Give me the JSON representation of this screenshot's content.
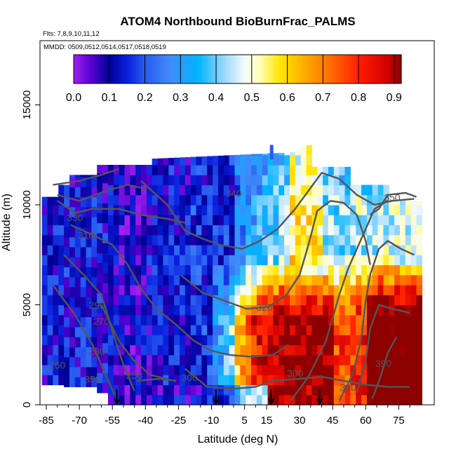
{
  "chart_data": {
    "type": "heatmap",
    "title": "ATOM4 Northbound BioBurnFrac_PALMS",
    "flights_label": "Flts: 7,8,9,10,11,12",
    "mmdd_label": "MMDD: 0509,0512,0514,0517,0518,0519",
    "xlabel": "Latitude (deg N)",
    "ylabel": "Altitude (m)",
    "xlim": [
      -87,
      84
    ],
    "ylim": [
      0,
      17500
    ],
    "x_ticks": [
      -85,
      -70,
      -55,
      -40,
      -25,
      -10,
      5,
      15,
      30,
      45,
      60,
      75
    ],
    "y_ticks": [
      0,
      5000,
      10000,
      15000
    ],
    "colorbar": {
      "ticks": [
        "0.0",
        "0.1",
        "0.2",
        "0.3",
        "0.4",
        "0.5",
        "0.6",
        "0.7",
        "0.8",
        "0.9"
      ],
      "range": [
        0,
        0.92
      ]
    },
    "contours": [
      {
        "label": "250",
        "lat": -45
      },
      {
        "label": "260",
        "lat": -80
      },
      {
        "label": "270",
        "lat": -60
      },
      {
        "label": "280",
        "lat": -62
      },
      {
        "label": "290",
        "lat": -62
      },
      {
        "label": "300",
        "lat": -20
      },
      {
        "label": "300",
        "lat": 28
      },
      {
        "label": "310",
        "lat": -67
      },
      {
        "label": "320",
        "lat": 14
      },
      {
        "label": "330",
        "lat": -72
      },
      {
        "label": "340",
        "lat": 0
      },
      {
        "label": "350",
        "lat": -64
      },
      {
        "label": "350",
        "lat": 72
      },
      {
        "label": "380",
        "lat": 52
      },
      {
        "label": "390",
        "lat": 68
      }
    ],
    "arrows_lat": [
      -53,
      -8,
      17,
      39
    ]
  }
}
